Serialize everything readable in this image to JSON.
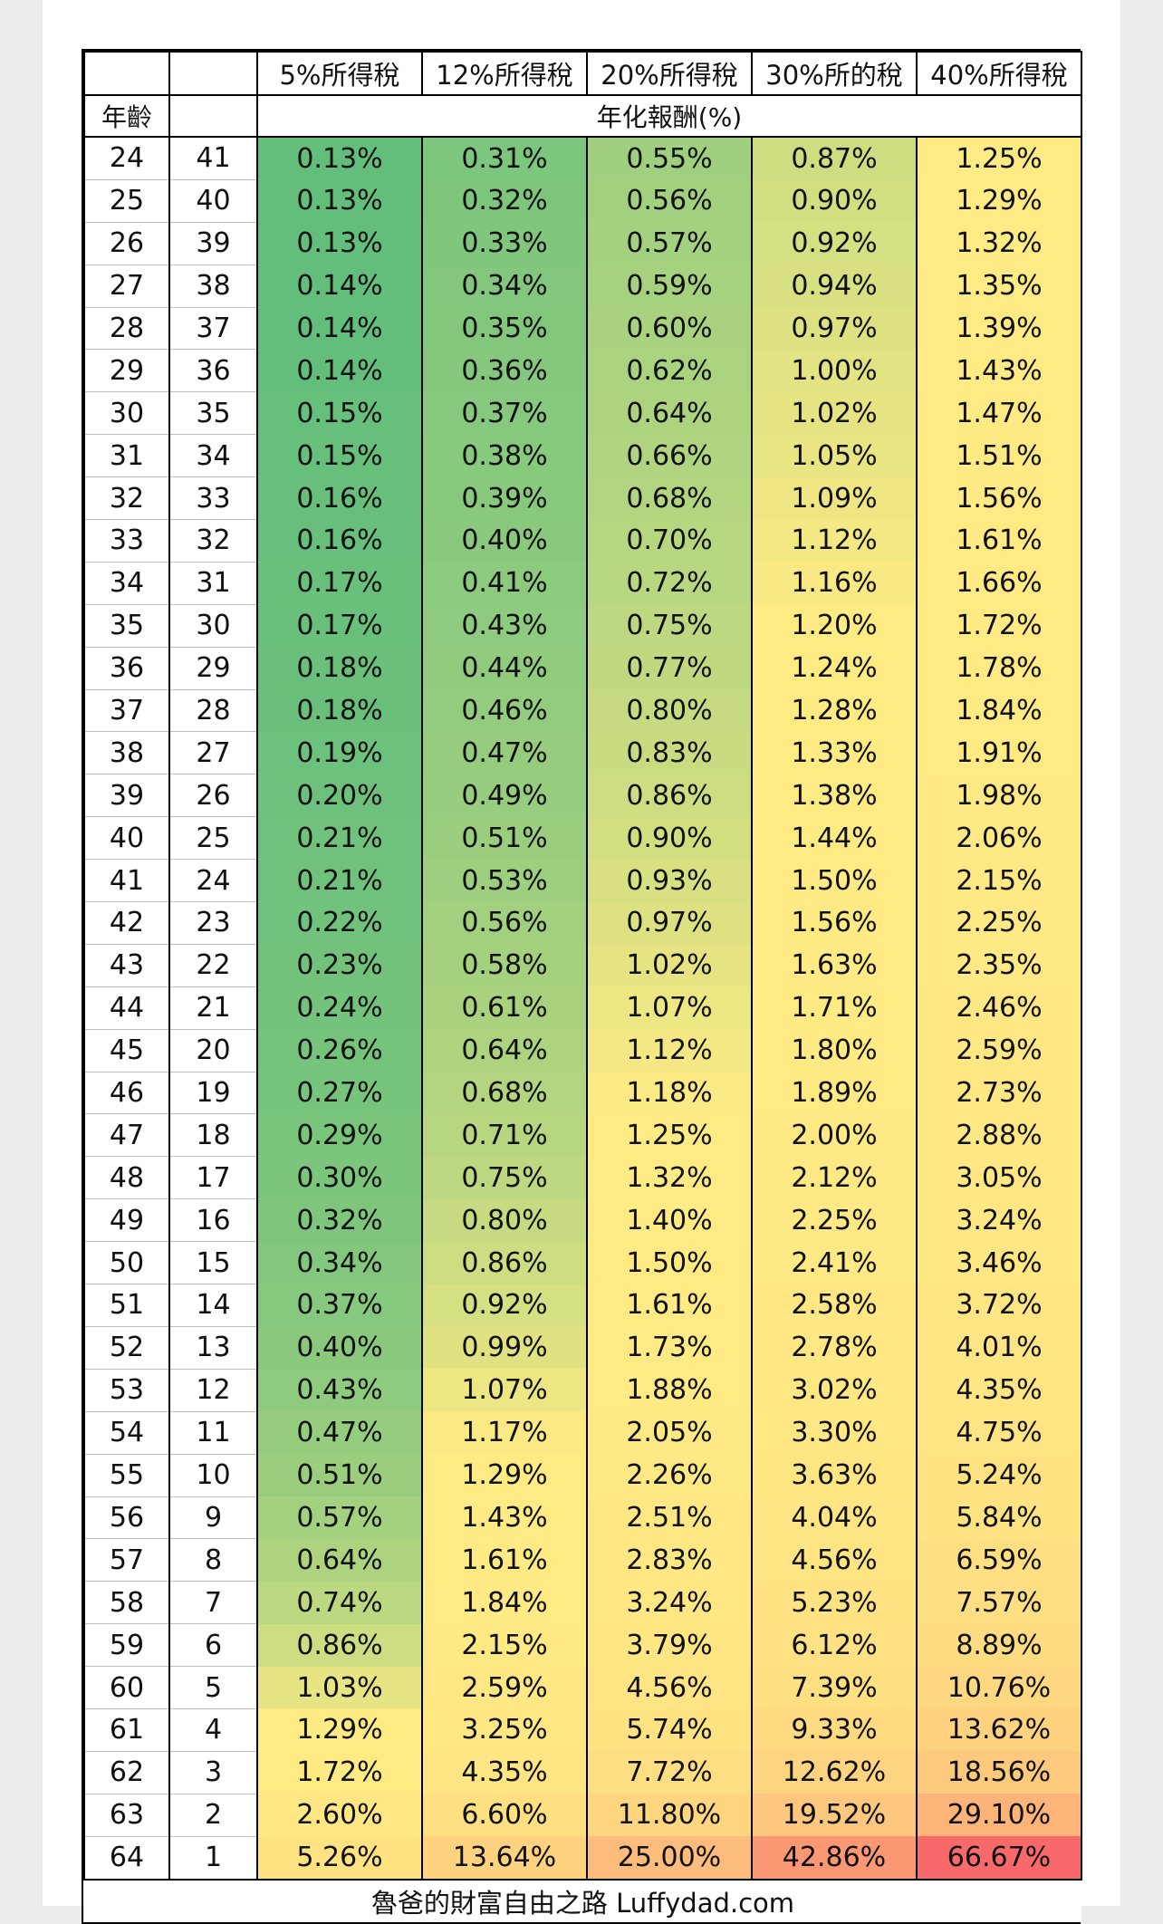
{
  "table": {
    "header": {
      "tax_columns": [
        "5%所得稅",
        "12%所得稅",
        "20%所得稅",
        "30%所的稅",
        "40%所得稅"
      ],
      "age_label": "年齡",
      "span_label": "年化報酬(%)"
    },
    "rows": [
      {
        "age": "24",
        "years": "41",
        "values": [
          "0.13%",
          "0.31%",
          "0.55%",
          "0.87%",
          "1.25%"
        ]
      },
      {
        "age": "25",
        "years": "40",
        "values": [
          "0.13%",
          "0.32%",
          "0.56%",
          "0.90%",
          "1.29%"
        ]
      },
      {
        "age": "26",
        "years": "39",
        "values": [
          "0.13%",
          "0.33%",
          "0.57%",
          "0.92%",
          "1.32%"
        ]
      },
      {
        "age": "27",
        "years": "38",
        "values": [
          "0.14%",
          "0.34%",
          "0.59%",
          "0.94%",
          "1.35%"
        ]
      },
      {
        "age": "28",
        "years": "37",
        "values": [
          "0.14%",
          "0.35%",
          "0.60%",
          "0.97%",
          "1.39%"
        ]
      },
      {
        "age": "29",
        "years": "36",
        "values": [
          "0.14%",
          "0.36%",
          "0.62%",
          "1.00%",
          "1.43%"
        ]
      },
      {
        "age": "30",
        "years": "35",
        "values": [
          "0.15%",
          "0.37%",
          "0.64%",
          "1.02%",
          "1.47%"
        ]
      },
      {
        "age": "31",
        "years": "34",
        "values": [
          "0.15%",
          "0.38%",
          "0.66%",
          "1.05%",
          "1.51%"
        ]
      },
      {
        "age": "32",
        "years": "33",
        "values": [
          "0.16%",
          "0.39%",
          "0.68%",
          "1.09%",
          "1.56%"
        ]
      },
      {
        "age": "33",
        "years": "32",
        "values": [
          "0.16%",
          "0.40%",
          "0.70%",
          "1.12%",
          "1.61%"
        ]
      },
      {
        "age": "34",
        "years": "31",
        "values": [
          "0.17%",
          "0.41%",
          "0.72%",
          "1.16%",
          "1.66%"
        ]
      },
      {
        "age": "35",
        "years": "30",
        "values": [
          "0.17%",
          "0.43%",
          "0.75%",
          "1.20%",
          "1.72%"
        ]
      },
      {
        "age": "36",
        "years": "29",
        "values": [
          "0.18%",
          "0.44%",
          "0.77%",
          "1.24%",
          "1.78%"
        ]
      },
      {
        "age": "37",
        "years": "28",
        "values": [
          "0.18%",
          "0.46%",
          "0.80%",
          "1.28%",
          "1.84%"
        ]
      },
      {
        "age": "38",
        "years": "27",
        "values": [
          "0.19%",
          "0.47%",
          "0.83%",
          "1.33%",
          "1.91%"
        ]
      },
      {
        "age": "39",
        "years": "26",
        "values": [
          "0.20%",
          "0.49%",
          "0.86%",
          "1.38%",
          "1.98%"
        ]
      },
      {
        "age": "40",
        "years": "25",
        "values": [
          "0.21%",
          "0.51%",
          "0.90%",
          "1.44%",
          "2.06%"
        ]
      },
      {
        "age": "41",
        "years": "24",
        "values": [
          "0.21%",
          "0.53%",
          "0.93%",
          "1.50%",
          "2.15%"
        ]
      },
      {
        "age": "42",
        "years": "23",
        "values": [
          "0.22%",
          "0.56%",
          "0.97%",
          "1.56%",
          "2.25%"
        ]
      },
      {
        "age": "43",
        "years": "22",
        "values": [
          "0.23%",
          "0.58%",
          "1.02%",
          "1.63%",
          "2.35%"
        ]
      },
      {
        "age": "44",
        "years": "21",
        "values": [
          "0.24%",
          "0.61%",
          "1.07%",
          "1.71%",
          "2.46%"
        ]
      },
      {
        "age": "45",
        "years": "20",
        "values": [
          "0.26%",
          "0.64%",
          "1.12%",
          "1.80%",
          "2.59%"
        ]
      },
      {
        "age": "46",
        "years": "19",
        "values": [
          "0.27%",
          "0.68%",
          "1.18%",
          "1.89%",
          "2.73%"
        ]
      },
      {
        "age": "47",
        "years": "18",
        "values": [
          "0.29%",
          "0.71%",
          "1.25%",
          "2.00%",
          "2.88%"
        ]
      },
      {
        "age": "48",
        "years": "17",
        "values": [
          "0.30%",
          "0.75%",
          "1.32%",
          "2.12%",
          "3.05%"
        ]
      },
      {
        "age": "49",
        "years": "16",
        "values": [
          "0.32%",
          "0.80%",
          "1.40%",
          "2.25%",
          "3.24%"
        ]
      },
      {
        "age": "50",
        "years": "15",
        "values": [
          "0.34%",
          "0.86%",
          "1.50%",
          "2.41%",
          "3.46%"
        ]
      },
      {
        "age": "51",
        "years": "14",
        "values": [
          "0.37%",
          "0.92%",
          "1.61%",
          "2.58%",
          "3.72%"
        ]
      },
      {
        "age": "52",
        "years": "13",
        "values": [
          "0.40%",
          "0.99%",
          "1.73%",
          "2.78%",
          "4.01%"
        ]
      },
      {
        "age": "53",
        "years": "12",
        "values": [
          "0.43%",
          "1.07%",
          "1.88%",
          "3.02%",
          "4.35%"
        ]
      },
      {
        "age": "54",
        "years": "11",
        "values": [
          "0.47%",
          "1.17%",
          "2.05%",
          "3.30%",
          "4.75%"
        ]
      },
      {
        "age": "55",
        "years": "10",
        "values": [
          "0.51%",
          "1.29%",
          "2.26%",
          "3.63%",
          "5.24%"
        ]
      },
      {
        "age": "56",
        "years": "9",
        "values": [
          "0.57%",
          "1.43%",
          "2.51%",
          "4.04%",
          "5.84%"
        ]
      },
      {
        "age": "57",
        "years": "8",
        "values": [
          "0.64%",
          "1.61%",
          "2.83%",
          "4.56%",
          "6.59%"
        ]
      },
      {
        "age": "58",
        "years": "7",
        "values": [
          "0.74%",
          "1.84%",
          "3.24%",
          "5.23%",
          "7.57%"
        ]
      },
      {
        "age": "59",
        "years": "6",
        "values": [
          "0.86%",
          "2.15%",
          "3.79%",
          "6.12%",
          "8.89%"
        ]
      },
      {
        "age": "60",
        "years": "5",
        "values": [
          "1.03%",
          "2.59%",
          "4.56%",
          "7.39%",
          "10.76%"
        ]
      },
      {
        "age": "61",
        "years": "4",
        "values": [
          "1.29%",
          "3.25%",
          "5.74%",
          "9.33%",
          "13.62%"
        ]
      },
      {
        "age": "62",
        "years": "3",
        "values": [
          "1.72%",
          "4.35%",
          "7.72%",
          "12.62%",
          "18.56%"
        ]
      },
      {
        "age": "63",
        "years": "2",
        "values": [
          "2.60%",
          "6.60%",
          "11.80%",
          "19.52%",
          "29.10%"
        ]
      },
      {
        "age": "64",
        "years": "1",
        "values": [
          "5.26%",
          "13.64%",
          "25.00%",
          "42.86%",
          "66.67%"
        ]
      }
    ],
    "footer": "魯爸的財富自由之路 Luffydad.com"
  },
  "colors": {
    "scale_low": "#63be7b",
    "scale_mid": "#ffeb84",
    "scale_high": "#f8696b"
  }
}
